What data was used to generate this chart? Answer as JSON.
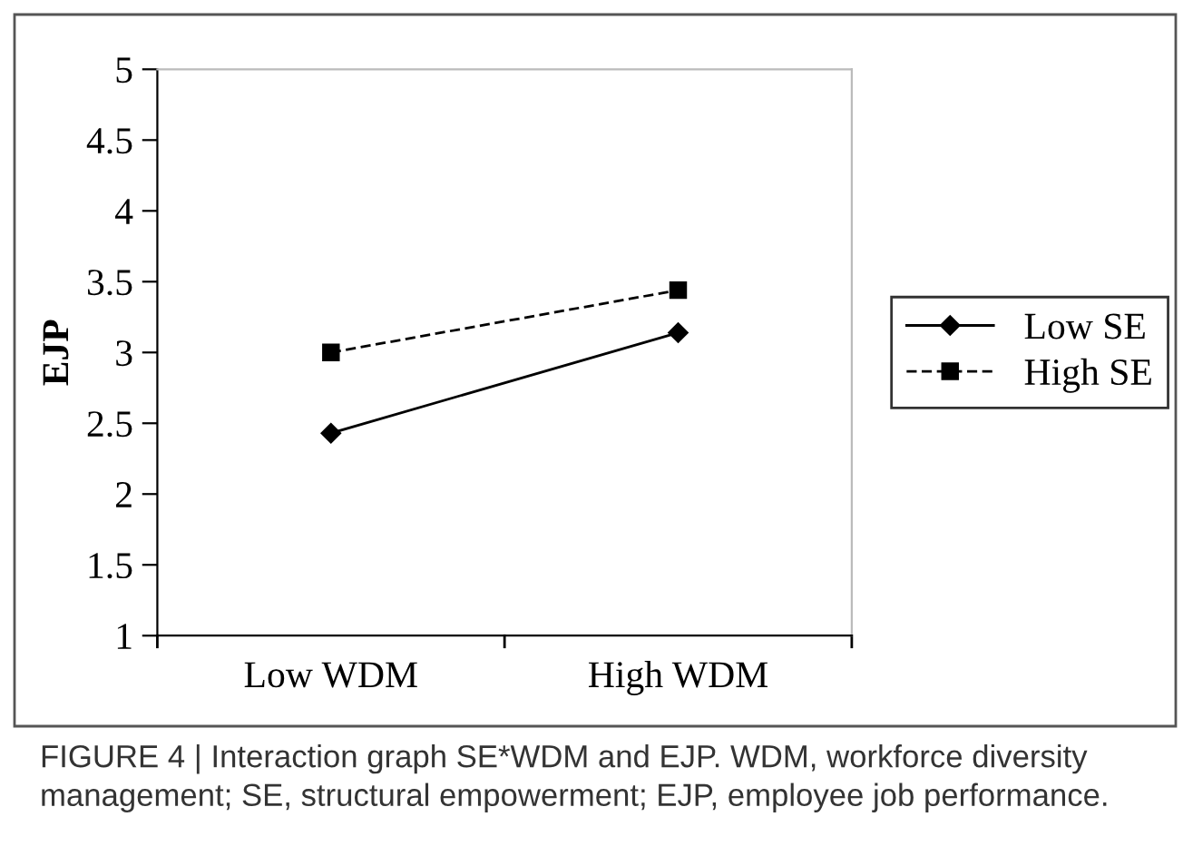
{
  "chart_data": {
    "type": "line",
    "ylabel": "EJP",
    "categories": [
      "Low WDM",
      "High WDM"
    ],
    "series": [
      {
        "name": "Low SE",
        "color": "#000000",
        "values": [
          2.43,
          3.14
        ],
        "marker": "diamond",
        "line_style": "solid"
      },
      {
        "name": "High SE",
        "color": "#000000",
        "values": [
          3.0,
          3.44
        ],
        "marker": "square",
        "line_style": "dashed"
      }
    ],
    "ylim": [
      1,
      5
    ],
    "yticks": [
      1,
      1.5,
      2,
      2.5,
      3,
      3.5,
      4,
      4.5,
      5
    ],
    "grid": false,
    "legend": "right",
    "annotations": [
      "FIGURE 4 | Interaction graph SE*WDM and EJP. WDM, workforce diversity management; SE, structural empowerment; EJP, employee job performance."
    ]
  }
}
